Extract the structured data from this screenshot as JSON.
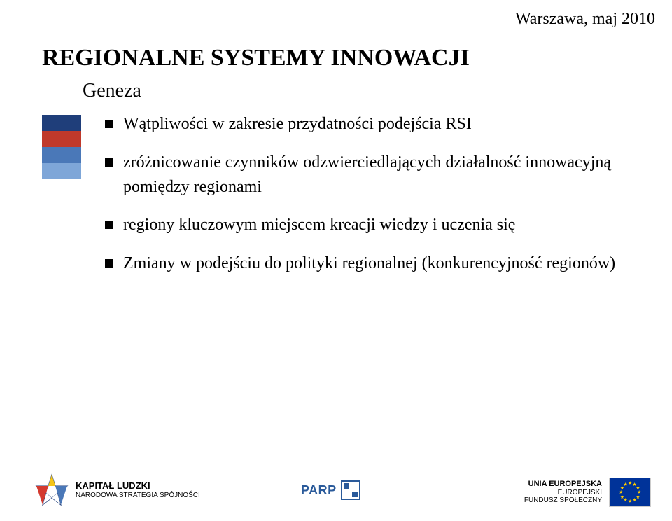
{
  "date": "Warszawa, maj 2010",
  "title": "REGIONALNE SYSTEMY INNOWACJI",
  "subtitle": "Geneza",
  "blockColors": [
    "#1f3e7a",
    "#c0392b",
    "#4a78b8",
    "#7ea6d8"
  ],
  "bullets": [
    "Wątpliwości w zakresie przydatności podejścia RSI",
    "zróżnicowanie czynników odzwierciedlających działalność innowacyjną pomiędzy regionami",
    "regiony kluczowym miejscem kreacji wiedzy i uczenia się",
    "Zmiany w podejściu do polityki regionalnej (konkurencyjność regionów)"
  ],
  "footer": {
    "left": {
      "line1": "KAPITAŁ LUDZKI",
      "line2": "NARODOWA STRATEGIA SPÓJNOŚCI",
      "starColors": {
        "top": "#f5c518",
        "left": "#d43a2f",
        "right": "#4a78b8",
        "bottom": "#ffffff",
        "outline": "#1f3e7a"
      }
    },
    "center": {
      "text": "PARP",
      "color": "#2a5a9a"
    },
    "right": {
      "line1": "UNIA EUROPEJSKA",
      "line2": "EUROPEJSKI",
      "line3": "FUNDUSZ SPOŁECZNY",
      "flagBg": "#003399",
      "starColor": "#ffcc00"
    }
  }
}
